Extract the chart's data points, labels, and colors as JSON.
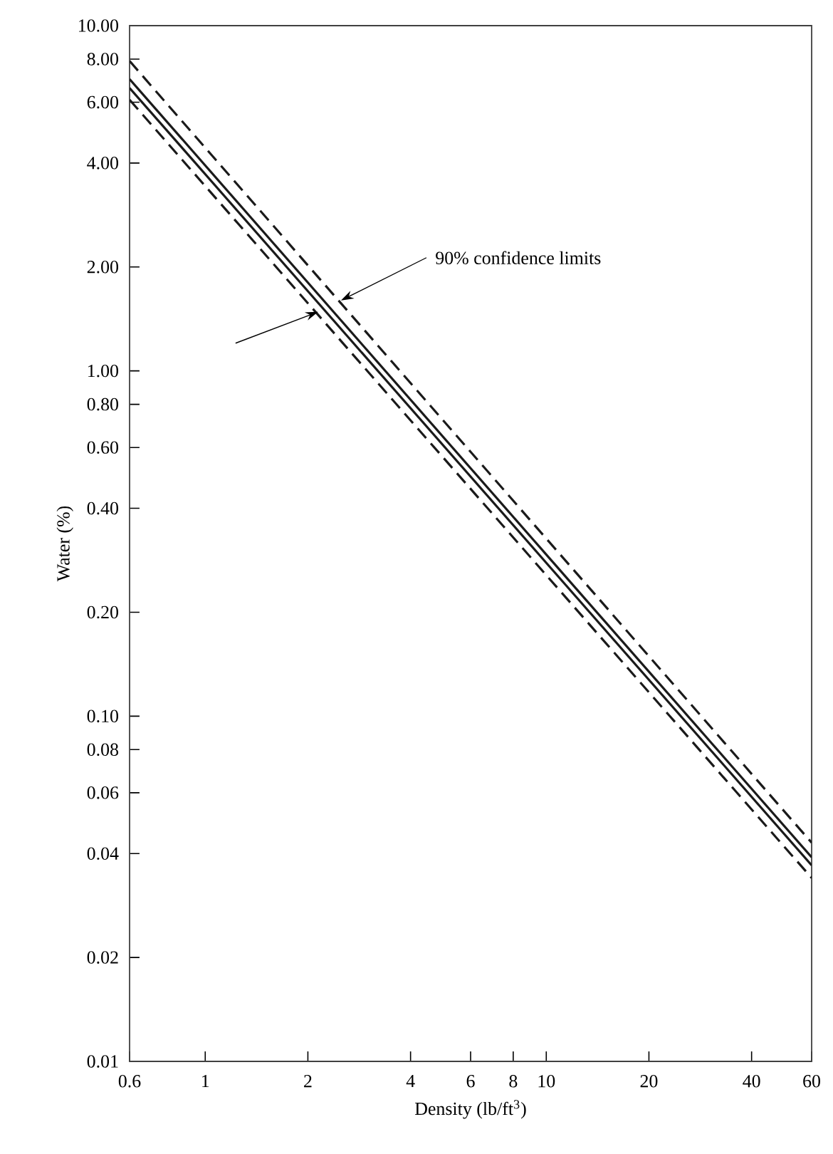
{
  "chart_data": {
    "type": "line",
    "xlabel": "Density (lb/ft$^{3}$)",
    "ylabel": "Water (%)",
    "log": "xy",
    "xlim": [
      0.6,
      60
    ],
    "ylim": [
      0.01,
      10
    ],
    "xticks": [
      {
        "value": 0.6,
        "label": "0.6"
      },
      1,
      2,
      4,
      6,
      8,
      10,
      20,
      40,
      60
    ],
    "yticks": [
      {
        "value": 0.01,
        "label": "0.01"
      },
      {
        "value": 0.02,
        "label": "0.02"
      },
      {
        "value": 0.04,
        "label": "0.04"
      },
      {
        "value": 0.06,
        "label": "0.06"
      },
      {
        "value": 0.08,
        "label": "0.08"
      },
      {
        "value": 0.1,
        "label": "0.10"
      },
      {
        "value": 0.2,
        "label": "0.20"
      },
      {
        "value": 0.4,
        "label": "0.40"
      },
      {
        "value": 0.6,
        "label": "0.60"
      },
      {
        "value": 0.8,
        "label": "0.80"
      },
      {
        "value": 1,
        "label": "1.00"
      },
      {
        "value": 2,
        "label": "2.00"
      },
      {
        "value": 4,
        "label": "4.00"
      },
      {
        "value": 6,
        "label": "6.00"
      },
      {
        "value": 8,
        "label": "8.00"
      },
      {
        "value": 10,
        "label": "10.00"
      }
    ],
    "grid": false,
    "marker": "none",
    "x": [
      0.6,
      60
    ],
    "series": [
      {
        "color": "#1a1a1a",
        "line_style": "dashed",
        "values": [
          7.9,
          0.043
        ]
      },
      {
        "color": "#1a1a1a",
        "line_style": "solid",
        "values": [
          7.0,
          0.039
        ]
      },
      {
        "color": "#1a1a1a",
        "line_style": "solid",
        "values": [
          6.6,
          0.037
        ]
      },
      {
        "color": "#1a1a1a",
        "line_style": "dashed",
        "values": [
          6.1,
          0.034
        ]
      }
    ],
    "annotations": [
      {
        "text": "90% confidence limits",
        "x": 2.5,
        "y": 1.6
      }
    ]
  }
}
